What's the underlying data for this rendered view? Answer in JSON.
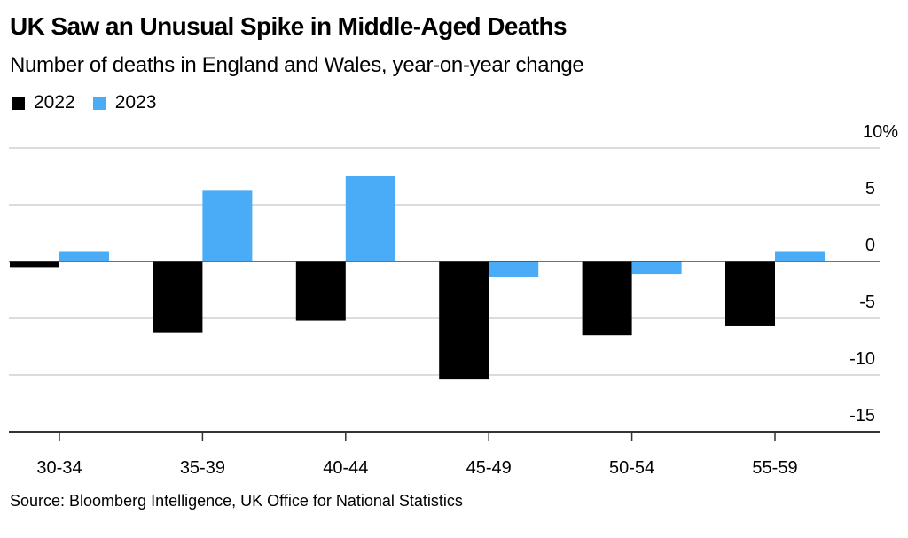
{
  "header": {
    "title": "UK Saw an Unusual Spike in Middle-Aged Deaths",
    "subtitle": "Number of deaths in England and Wales, year-on-year change"
  },
  "legend": [
    {
      "label": "2022",
      "color": "#000000"
    },
    {
      "label": "2023",
      "color": "#4aacf7"
    }
  ],
  "footer": {
    "source": "Source: Bloomberg Intelligence, UK Office for National Statistics"
  },
  "chart_data": {
    "type": "bar",
    "title": "UK Saw an Unusual Spike in Middle-Aged Deaths",
    "subtitle": "Number of deaths in England and Wales, year-on-year change",
    "xlabel": "",
    "ylabel": "",
    "categories": [
      "30-34",
      "35-39",
      "40-44",
      "45-49",
      "50-54",
      "55-59"
    ],
    "series": [
      {
        "name": "2022",
        "color": "#000000",
        "values": [
          -0.5,
          -6.3,
          -5.2,
          -10.4,
          -6.5,
          -5.7
        ]
      },
      {
        "name": "2023",
        "color": "#4aacf7",
        "values": [
          0.9,
          6.3,
          7.5,
          -1.4,
          -1.1,
          0.9
        ]
      }
    ],
    "ylim": [
      -15,
      10
    ],
    "yticks": [
      10,
      5,
      0,
      -5,
      -10,
      -15
    ],
    "ytick_labels": [
      "10%",
      "5",
      "0",
      "-5",
      "-10",
      "-15"
    ],
    "y_axis_position": "right",
    "grid": true,
    "legend_position": "top-left"
  }
}
